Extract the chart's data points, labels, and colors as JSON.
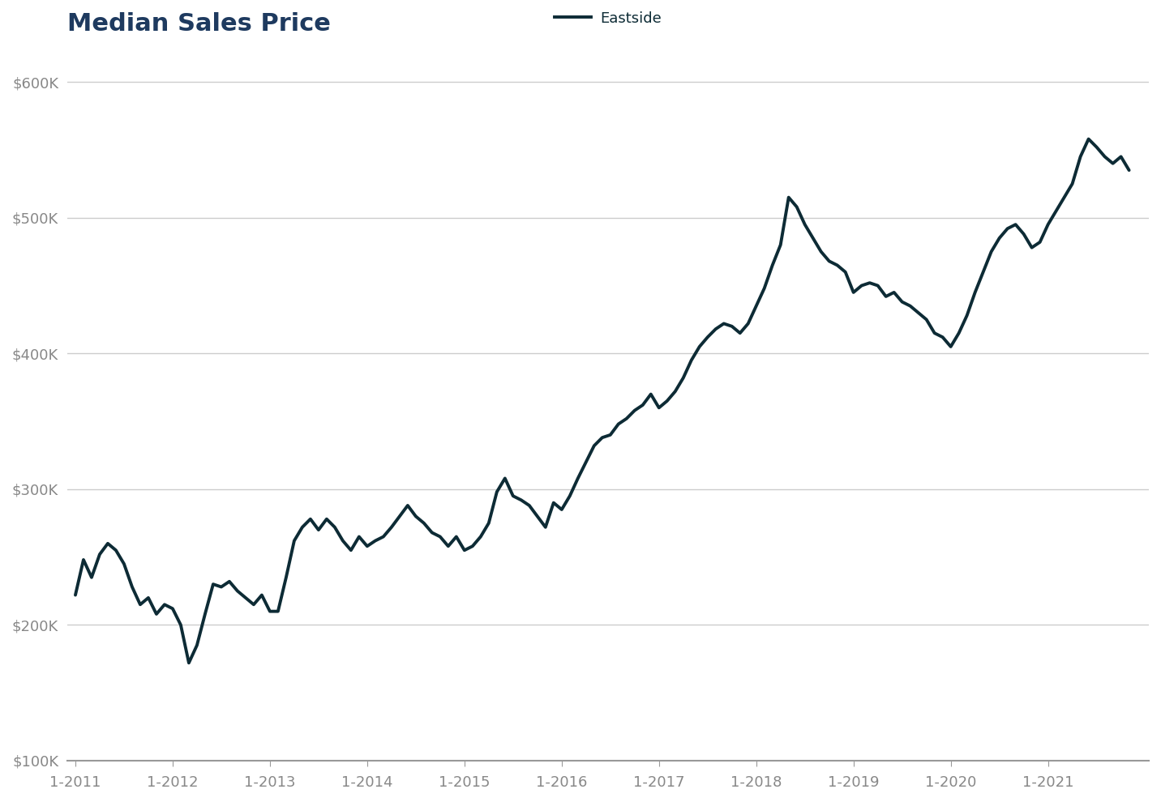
{
  "title": "Median Sales Price",
  "title_color": "#1e3a5f",
  "title_fontsize": 22,
  "legend_label": "Eastside",
  "line_color": "#0d2b35",
  "line_width": 2.8,
  "background_color": "#ffffff",
  "grid_color": "#cccccc",
  "tick_label_color": "#888888",
  "ylim": [
    100000,
    625000
  ],
  "yticks": [
    100000,
    200000,
    300000,
    400000,
    500000,
    600000
  ],
  "ytick_labels": [
    "$100K",
    "$200K",
    "$300K",
    "$400K",
    "$500K",
    "$600K"
  ],
  "values": [
    222000,
    248000,
    235000,
    252000,
    260000,
    255000,
    245000,
    228000,
    215000,
    220000,
    208000,
    215000,
    212000,
    200000,
    172000,
    185000,
    208000,
    230000,
    228000,
    232000,
    225000,
    220000,
    215000,
    222000,
    210000,
    210000,
    235000,
    262000,
    272000,
    278000,
    270000,
    278000,
    272000,
    262000,
    255000,
    265000,
    258000,
    262000,
    265000,
    272000,
    280000,
    288000,
    280000,
    275000,
    268000,
    265000,
    258000,
    265000,
    255000,
    258000,
    265000,
    275000,
    298000,
    308000,
    295000,
    292000,
    288000,
    280000,
    272000,
    290000,
    285000,
    295000,
    308000,
    320000,
    332000,
    338000,
    340000,
    348000,
    352000,
    358000,
    362000,
    370000,
    360000,
    365000,
    372000,
    382000,
    395000,
    405000,
    412000,
    418000,
    422000,
    420000,
    415000,
    422000,
    435000,
    448000,
    465000,
    480000,
    515000,
    508000,
    495000,
    485000,
    475000,
    468000,
    465000,
    460000,
    445000,
    450000,
    452000,
    450000,
    442000,
    445000,
    438000,
    435000,
    430000,
    425000,
    415000,
    412000,
    405000,
    415000,
    428000,
    445000,
    460000,
    475000,
    485000,
    492000,
    495000,
    488000,
    478000,
    482000,
    495000,
    505000,
    515000,
    525000,
    545000,
    558000,
    552000,
    545000,
    540000,
    545000,
    535000
  ],
  "xtick_years": [
    2011,
    2012,
    2013,
    2014,
    2015,
    2016,
    2017,
    2018,
    2019,
    2020,
    2021
  ]
}
